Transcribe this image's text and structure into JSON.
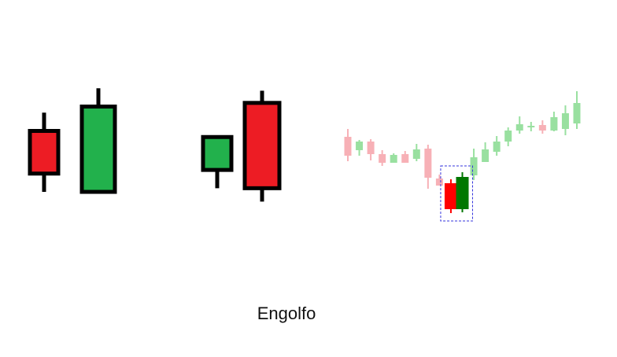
{
  "caption": "Engolfo",
  "colors": {
    "bull": "#22b14c",
    "bear": "#ed1c24",
    "outline": "#000000",
    "bull_dark": "#007700",
    "bear_bright": "#ff0000",
    "bull_faded": "#99e0a0",
    "bear_faded": "#f7b0b6",
    "highlight_box": "#3333dd"
  },
  "examples": [
    {
      "name": "bullish-engulfing",
      "candles": [
        {
          "direction": "bear",
          "open": 70,
          "close": 35,
          "high": 85,
          "low": 20
        },
        {
          "direction": "bull",
          "open": 20,
          "close": 90,
          "high": 105,
          "low": 20
        }
      ]
    },
    {
      "name": "bearish-engulfing",
      "candles": [
        {
          "direction": "bull",
          "open": 38,
          "close": 65,
          "high": 65,
          "low": 23
        },
        {
          "direction": "bear",
          "open": 93,
          "close": 23,
          "high": 103,
          "low": 12
        }
      ]
    }
  ],
  "market_sequence": [
    {
      "o": 146,
      "c": 122,
      "h": 156,
      "l": 115
    },
    {
      "o": 129,
      "c": 140,
      "h": 142,
      "l": 122
    },
    {
      "o": 140,
      "c": 124,
      "h": 143,
      "l": 116
    },
    {
      "o": 124,
      "c": 113,
      "h": 129,
      "l": 109
    },
    {
      "o": 113,
      "c": 123,
      "h": 125,
      "l": 113
    },
    {
      "o": 124,
      "c": 113,
      "h": 128,
      "l": 113
    },
    {
      "o": 118,
      "c": 130,
      "h": 137,
      "l": 115
    },
    {
      "o": 131,
      "c": 94,
      "h": 136,
      "l": 80
    },
    {
      "o": 93,
      "c": 84,
      "h": 98,
      "l": 84
    },
    {
      "o": 87,
      "c": 54,
      "h": 92,
      "l": 49,
      "highlight": true
    },
    {
      "o": 54,
      "c": 95,
      "h": 101,
      "l": 50,
      "highlight": true
    },
    {
      "o": 97,
      "c": 120,
      "h": 131,
      "l": 91
    },
    {
      "o": 114,
      "c": 130,
      "h": 139,
      "l": 115
    },
    {
      "o": 127,
      "c": 140,
      "h": 147,
      "l": 122
    },
    {
      "o": 140,
      "c": 154,
      "h": 158,
      "l": 134
    },
    {
      "o": 154,
      "c": 162,
      "h": 172,
      "l": 150
    },
    {
      "o": 158,
      "c": 160,
      "h": 165,
      "l": 153
    },
    {
      "o": 161,
      "c": 154,
      "h": 167,
      "l": 150
    },
    {
      "o": 154,
      "c": 171,
      "h": 178,
      "l": 153
    },
    {
      "o": 156,
      "c": 176,
      "h": 186,
      "l": 148
    },
    {
      "o": 163,
      "c": 189,
      "h": 204,
      "l": 156
    }
  ]
}
